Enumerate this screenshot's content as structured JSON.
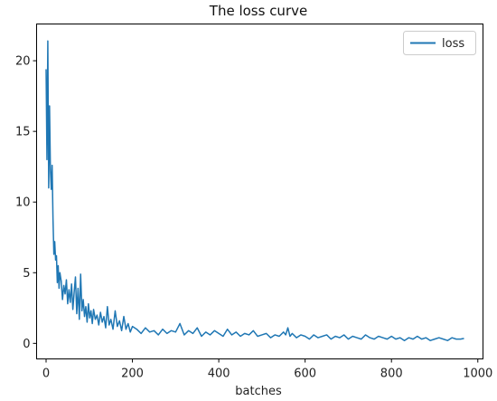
{
  "chart_data": {
    "type": "line",
    "title": "The loss curve",
    "xlabel": "batches",
    "ylabel": "",
    "xlim": [
      -22,
      1012
    ],
    "ylim": [
      -1.1,
      22.6
    ],
    "xticks": [
      0,
      200,
      400,
      600,
      800,
      1000
    ],
    "yticks": [
      0,
      5,
      10,
      15,
      20
    ],
    "grid": false,
    "legend_position": "top-right",
    "series": [
      {
        "name": "loss",
        "color": "#1f77b4",
        "x": [
          0,
          2,
          4,
          6,
          8,
          10,
          12,
          14,
          16,
          18,
          20,
          22,
          24,
          26,
          28,
          30,
          32,
          35,
          38,
          41,
          44,
          47,
          50,
          53,
          56,
          59,
          62,
          65,
          68,
          71,
          74,
          77,
          80,
          83,
          86,
          89,
          92,
          95,
          98,
          101,
          104,
          107,
          110,
          114,
          118,
          122,
          126,
          130,
          134,
          138,
          142,
          146,
          150,
          155,
          160,
          165,
          170,
          175,
          180,
          185,
          190,
          195,
          200,
          210,
          220,
          230,
          240,
          250,
          260,
          270,
          280,
          290,
          300,
          310,
          320,
          330,
          340,
          350,
          360,
          370,
          380,
          390,
          400,
          410,
          420,
          430,
          440,
          450,
          460,
          470,
          480,
          490,
          500,
          510,
          520,
          530,
          540,
          550,
          555,
          560,
          565,
          570,
          580,
          590,
          600,
          610,
          620,
          630,
          640,
          650,
          660,
          670,
          680,
          690,
          700,
          710,
          720,
          730,
          740,
          750,
          760,
          770,
          780,
          790,
          800,
          810,
          820,
          830,
          840,
          850,
          860,
          870,
          880,
          890,
          900,
          910,
          920,
          930,
          940,
          950,
          960,
          968
        ],
        "y": [
          19.4,
          13.0,
          21.4,
          11.0,
          16.8,
          12.3,
          10.9,
          12.6,
          8.8,
          6.3,
          7.2,
          5.9,
          6.2,
          4.3,
          5.5,
          3.9,
          5.0,
          4.4,
          3.1,
          4.1,
          3.5,
          4.5,
          2.8,
          3.8,
          2.9,
          4.2,
          2.4,
          3.6,
          4.7,
          2.1,
          3.9,
          1.7,
          4.9,
          2.3,
          3.1,
          1.9,
          2.6,
          1.5,
          2.8,
          1.8,
          2.3,
          1.4,
          2.4,
          1.7,
          2.0,
          1.3,
          2.2,
          1.5,
          1.9,
          1.1,
          2.6,
          1.3,
          1.7,
          1.0,
          2.3,
          1.2,
          1.6,
          0.9,
          1.9,
          1.0,
          1.4,
          0.8,
          1.2,
          1.0,
          0.7,
          1.1,
          0.8,
          0.9,
          0.6,
          1.0,
          0.7,
          0.9,
          0.8,
          1.4,
          0.6,
          0.9,
          0.7,
          1.1,
          0.5,
          0.8,
          0.6,
          0.9,
          0.7,
          0.5,
          1.0,
          0.6,
          0.8,
          0.5,
          0.7,
          0.6,
          0.9,
          0.5,
          0.6,
          0.7,
          0.4,
          0.6,
          0.5,
          0.8,
          0.6,
          1.1,
          0.5,
          0.7,
          0.4,
          0.6,
          0.5,
          0.3,
          0.6,
          0.4,
          0.5,
          0.6,
          0.3,
          0.5,
          0.4,
          0.6,
          0.3,
          0.5,
          0.4,
          0.3,
          0.6,
          0.4,
          0.3,
          0.5,
          0.4,
          0.3,
          0.5,
          0.3,
          0.4,
          0.2,
          0.4,
          0.3,
          0.5,
          0.3,
          0.4,
          0.2,
          0.3,
          0.4,
          0.3,
          0.2,
          0.4,
          0.3,
          0.3,
          0.35
        ]
      }
    ]
  }
}
